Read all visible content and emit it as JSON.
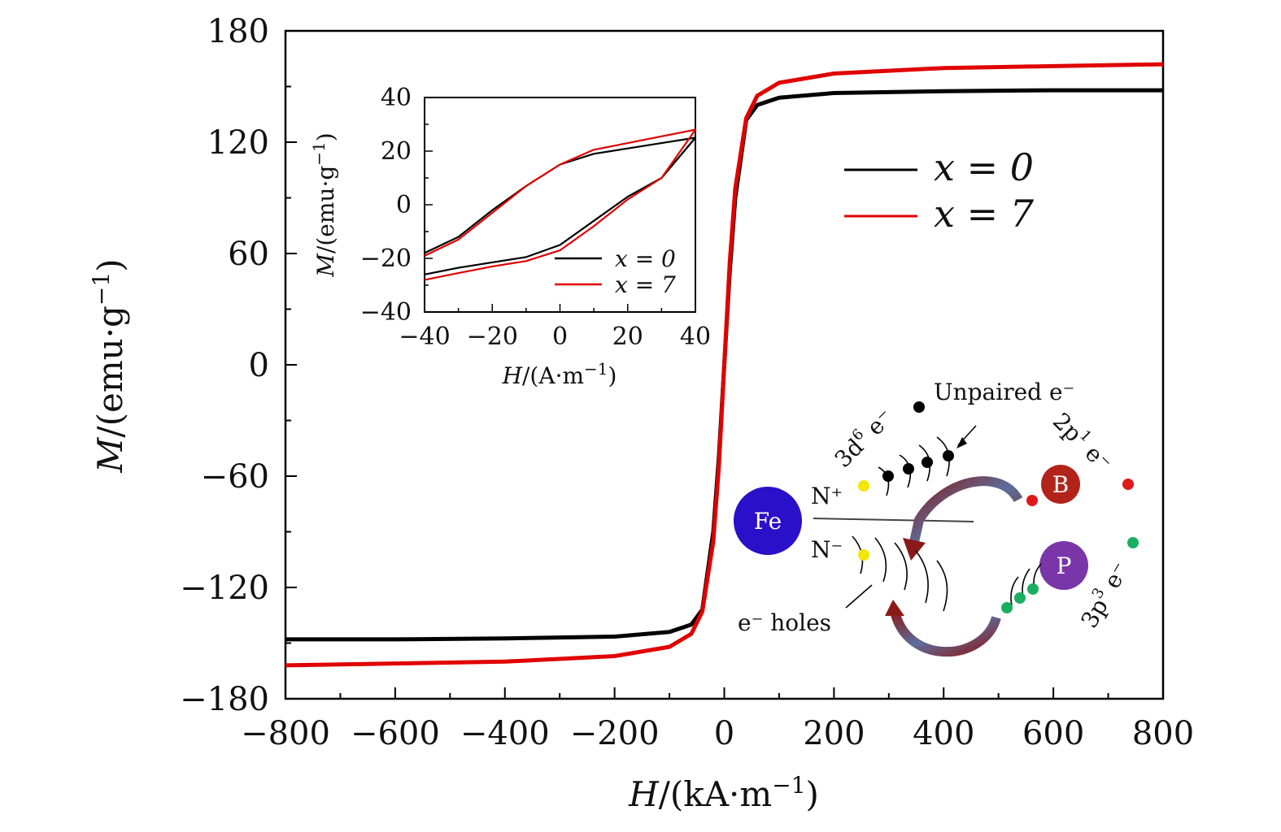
{
  "chart_data": [
    {
      "type": "line",
      "xlabel": "H/(kA·m⁻¹)",
      "ylabel": "M/(emu·g⁻¹)",
      "xlim": [
        -800,
        800
      ],
      "ylim": [
        -180,
        180
      ],
      "xticks": [
        -800,
        -600,
        -400,
        -200,
        0,
        200,
        400,
        600,
        800
      ],
      "xtick_labels": [
        "−800",
        "−600",
        "−400",
        "−200",
        "0",
        "200",
        "400",
        "600",
        "800"
      ],
      "yticks": [
        -180,
        -120,
        -60,
        0,
        60,
        120,
        180
      ],
      "ytick_labels": [
        "−180",
        "−120",
        "−60",
        "0",
        "60",
        "120",
        "180"
      ],
      "grid": false,
      "legend_position": "top-right",
      "series": [
        {
          "name": "x = 0",
          "color": "#000000",
          "x": [
            -800,
            -600,
            -400,
            -200,
            -100,
            -60,
            -40,
            -20,
            -10,
            0,
            10,
            20,
            40,
            60,
            100,
            200,
            400,
            600,
            800
          ],
          "y": [
            -148,
            -148,
            -147.5,
            -146.5,
            -144,
            -140,
            -132,
            -90,
            -50,
            0,
            50,
            90,
            132,
            140,
            144,
            146.5,
            147.5,
            148,
            148
          ]
        },
        {
          "name": "x = 7",
          "color": "#e00000",
          "x": [
            -800,
            -600,
            -400,
            -200,
            -100,
            -60,
            -40,
            -20,
            -10,
            0,
            10,
            20,
            40,
            60,
            100,
            200,
            400,
            600,
            800
          ],
          "y": [
            -162,
            -161,
            -160,
            -157,
            -152,
            -145,
            -133,
            -95,
            -55,
            0,
            55,
            95,
            133,
            145,
            152,
            157,
            160,
            161,
            162
          ]
        }
      ]
    },
    {
      "type": "line",
      "xlabel": "H/(A·m⁻¹)",
      "ylabel": "M/(emu·g⁻¹)",
      "xlim": [
        -40,
        40
      ],
      "ylim": [
        -40,
        40
      ],
      "xticks": [
        -40,
        -20,
        0,
        20,
        40
      ],
      "xtick_labels": [
        "−40",
        "−20",
        "0",
        "20",
        "40"
      ],
      "yticks": [
        -40,
        -20,
        0,
        20,
        40
      ],
      "ytick_labels": [
        "−40",
        "−20",
        "0",
        "20",
        "40"
      ],
      "grid": false,
      "legend_position": "bottom-right",
      "series": [
        {
          "name": "x = 0",
          "color": "#000000",
          "x": [
            -40,
            -30,
            -20,
            -10,
            0,
            10,
            20,
            30,
            40,
            30,
            20,
            10,
            0,
            -10,
            -20,
            -30,
            -40
          ],
          "y": [
            -18,
            -12,
            -2,
            7,
            15,
            19,
            21,
            23,
            25,
            10,
            3,
            -6,
            -15,
            -19.5,
            -21.5,
            -23.5,
            -26
          ]
        },
        {
          "name": "x = 7",
          "color": "#e00000",
          "x": [
            -40,
            -30,
            -20,
            -10,
            0,
            10,
            20,
            30,
            40,
            30,
            20,
            10,
            0,
            -10,
            -20,
            -30,
            -40
          ],
          "y": [
            -19,
            -13,
            -3,
            7,
            15,
            20.5,
            23,
            25.5,
            28,
            10,
            2,
            -8,
            -17,
            -21,
            -23,
            -25.5,
            -28
          ]
        }
      ]
    }
  ],
  "diagram": {
    "atoms": {
      "fe": "Fe",
      "b": "B",
      "p": "P"
    },
    "labels": {
      "n_plus": "N⁺",
      "n_minus": "N⁻",
      "d6_pre": "3d",
      "d6_sup": "6",
      "d6_post": " e⁻",
      "unpaired": "Unpaired e⁻",
      "p1_pre": "2p",
      "p1_sup": "1",
      "p1_post": " e⁻",
      "p3_pre": "3p",
      "p3_sup": "3",
      "p3_post": " e⁻",
      "holes": "e⁻ holes"
    },
    "colors": {
      "fe": "#2a10c8",
      "b": "#b2241a",
      "p": "#7a36a8",
      "yellow": "#f2e60a",
      "red": "#e01818",
      "green": "#18b060",
      "black": "#000000"
    }
  }
}
